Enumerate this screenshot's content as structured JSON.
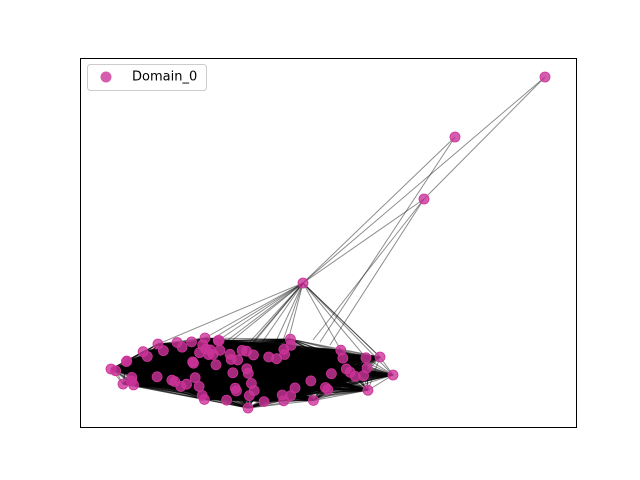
{
  "legend": {
    "entries": [
      {
        "label": "Domain_0",
        "color": "#cc3399"
      }
    ]
  }
}
